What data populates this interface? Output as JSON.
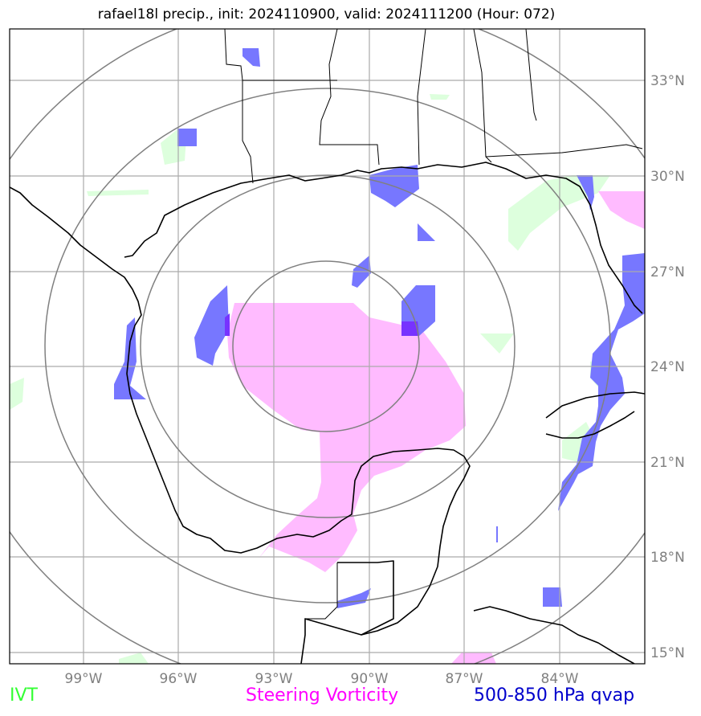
{
  "title": "rafael18l precip., init: 2024110900, valid: 2024111200 (Hour: 072)",
  "map": {
    "lon_ticks": [
      "99°W",
      "96°W",
      "93°W",
      "90°W",
      "87°W",
      "84°W"
    ],
    "lat_ticks": [
      "33°N",
      "30°N",
      "27°N",
      "24°N",
      "21°N",
      "18°N",
      "15°N"
    ],
    "range_rings_count": 4
  },
  "legend": {
    "ivt": {
      "label": "IVT",
      "color": "#33ff33"
    },
    "vorticity": {
      "label": "Steering Vorticity",
      "color": "#ff00ff"
    },
    "qvap": {
      "label": "500-850 hPa qvap",
      "color": "#0000cc"
    }
  },
  "colors": {
    "ivt_fill": "#ddffdd",
    "vorticity_fill": "#ffbbff",
    "qvap_fill": "#7777ff",
    "grid": "#aaaaaa",
    "rings": "#808080",
    "coast": "#000000"
  }
}
